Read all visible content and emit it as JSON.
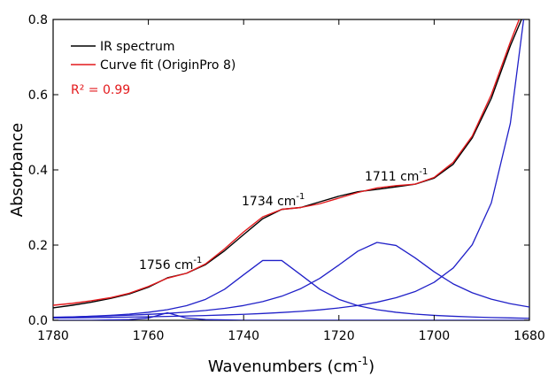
{
  "chart_data": {
    "type": "line",
    "x_label": [
      "Wavenumbers (cm",
      "-1",
      ")"
    ],
    "y_label": "Absorbance",
    "annotations": [
      {
        "text": "1756 cm",
        "sup": "-1"
      },
      {
        "text": "1734 cm",
        "sup": "-1"
      },
      {
        "text": "1711 cm",
        "sup": "-1"
      },
      {
        "text": "R² = 0.99",
        "color": "#e3191c"
      }
    ],
    "x": [
      1780,
      1776,
      1772,
      1768,
      1764,
      1760,
      1756,
      1752,
      1748,
      1744,
      1740,
      1736,
      1732,
      1728,
      1724,
      1720,
      1716,
      1712,
      1708,
      1704,
      1700,
      1696,
      1692,
      1688,
      1684,
      1680
    ],
    "series": [
      {
        "name": "IR spectrum",
        "color": "#000000",
        "values": [
          0.033,
          0.04,
          0.048,
          0.058,
          0.07,
          0.088,
          0.113,
          0.125,
          0.148,
          0.185,
          0.228,
          0.27,
          0.295,
          0.3,
          0.315,
          0.33,
          0.342,
          0.348,
          0.355,
          0.362,
          0.378,
          0.415,
          0.485,
          0.59,
          0.73,
          0.85
        ]
      },
      {
        "name": "Curve fit (OriginPro 8)",
        "color": "#e3191c",
        "values": [
          0.04,
          0.045,
          0.052,
          0.06,
          0.072,
          0.09,
          0.112,
          0.125,
          0.15,
          0.19,
          0.235,
          0.275,
          0.295,
          0.3,
          0.31,
          0.325,
          0.34,
          0.352,
          0.358,
          0.362,
          0.38,
          0.42,
          0.49,
          0.6,
          0.74,
          0.87
        ]
      },
      {
        "color": "#2020c8",
        "values": [
          0,
          0,
          0,
          0.001,
          0.002,
          0.006,
          0.02,
          0.006,
          0.002,
          0.001,
          0,
          0,
          0,
          0,
          0,
          0,
          0,
          0,
          0,
          0,
          0,
          0,
          0,
          0,
          0,
          0
        ]
      },
      {
        "color": "#2020c8",
        "values": [
          0.0074,
          0.0089,
          0.0107,
          0.0131,
          0.0165,
          0.0213,
          0.0283,
          0.0389,
          0.0557,
          0.0825,
          0.121,
          0.159,
          0.159,
          0.121,
          0.0825,
          0.0557,
          0.0389,
          0.0283,
          0.0213,
          0.0165,
          0.0131,
          0.0107,
          0.0089,
          0.0074,
          0.0063,
          0.0053
        ]
      },
      {
        "color": "#2020c8",
        "values": [
          0.0082,
          0.0092,
          0.0104,
          0.0118,
          0.0136,
          0.0157,
          0.0184,
          0.0217,
          0.0261,
          0.0317,
          0.0393,
          0.0496,
          0.064,
          0.0842,
          0.1117,
          0.147,
          0.184,
          0.207,
          0.199,
          0.166,
          0.129,
          0.0968,
          0.0732,
          0.0562,
          0.0441,
          0.0353
        ]
      },
      {
        "color": "#2020c8",
        "values": [
          0.0062,
          0.0066,
          0.0072,
          0.0078,
          0.0085,
          0.0094,
          0.0103,
          0.0114,
          0.0127,
          0.0142,
          0.0159,
          0.0181,
          0.0207,
          0.0238,
          0.0278,
          0.0329,
          0.0394,
          0.0481,
          0.0599,
          0.0764,
          0.101,
          0.139,
          0.201,
          0.312,
          0.524,
          0.92
        ]
      }
    ],
    "xlim": [
      1780,
      1680
    ],
    "ylim": [
      0,
      0.8
    ],
    "xticks": [
      1780,
      1760,
      1740,
      1720,
      1700,
      1680
    ],
    "yticks": [
      {
        "value": 0,
        "label": "0.0"
      },
      0.2,
      0.4,
      0.6,
      0.8
    ]
  }
}
